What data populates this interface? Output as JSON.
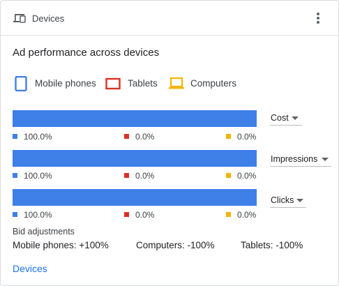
{
  "header": {
    "title": "Devices",
    "icon": "devices-icon",
    "menu_icon": "more-vert-icon"
  },
  "chart_title": "Ad performance across devices",
  "colors": {
    "mobile": "#3f7fe8",
    "tablets": "#d93025",
    "computers": "#f4b400",
    "link": "#1a73e8"
  },
  "legend": [
    {
      "label": "Mobile phones",
      "icon": "mobile-phone-icon"
    },
    {
      "label": "Tablets",
      "icon": "tablet-icon"
    },
    {
      "label": "Computers",
      "icon": "computer-icon"
    }
  ],
  "chart_data": {
    "type": "bar",
    "stacked": true,
    "orientation": "horizontal",
    "categories": [
      "Cost",
      "Impressions",
      "Clicks"
    ],
    "series": [
      {
        "name": "Mobile phones",
        "values": [
          100.0,
          100.0,
          100.0
        ]
      },
      {
        "name": "Tablets",
        "values": [
          0.0,
          0.0,
          0.0
        ]
      },
      {
        "name": "Computers",
        "values": [
          0.0,
          0.0,
          0.0
        ]
      }
    ],
    "unit": "%"
  },
  "rows": [
    {
      "metric": "Cost",
      "mobile": "100.0%",
      "tablets": "0.0%",
      "computers": "0.0%"
    },
    {
      "metric": "Impressions",
      "mobile": "100.0%",
      "tablets": "0.0%",
      "computers": "0.0%"
    },
    {
      "metric": "Clicks",
      "mobile": "100.0%",
      "tablets": "0.0%",
      "computers": "0.0%"
    }
  ],
  "bid_adjustments": {
    "title": "Bid adjustments",
    "mobile": "Mobile phones: +100%",
    "computers": "Computers: -100%",
    "tablets": "Tablets: -100%"
  },
  "link": {
    "label": "Devices"
  }
}
